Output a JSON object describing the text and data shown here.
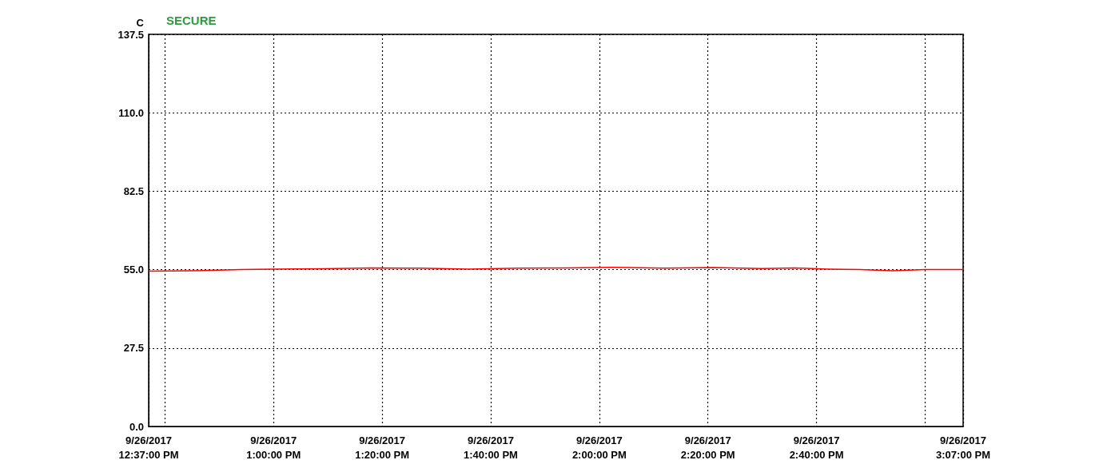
{
  "chart_data": {
    "type": "line",
    "ylabel": "C",
    "annotations": [
      "SECURE"
    ],
    "x": [
      "2017-09-26T12:37",
      "2017-09-26T12:45",
      "2017-09-26T12:54",
      "2017-09-26T13:00",
      "2017-09-26T13:09",
      "2017-09-26T13:18",
      "2017-09-26T13:27",
      "2017-09-26T13:36",
      "2017-09-26T13:45",
      "2017-09-26T13:54",
      "2017-09-26T14:03",
      "2017-09-26T14:12",
      "2017-09-26T14:21",
      "2017-09-26T14:30",
      "2017-09-26T14:36",
      "2017-09-26T14:42",
      "2017-09-26T14:48",
      "2017-09-26T14:54",
      "2017-09-26T15:00",
      "2017-09-26T15:07"
    ],
    "series": [
      {
        "color": "#ff0000",
        "values": [
          54.5,
          54.6,
          55.0,
          55.2,
          55.3,
          55.6,
          55.5,
          55.2,
          55.5,
          55.6,
          55.8,
          55.5,
          55.7,
          55.4,
          55.6,
          55.2,
          55.0,
          54.6,
          55.0,
          55.0
        ]
      }
    ],
    "xlim": [
      "2017-09-26T12:37",
      "2017-09-26T15:07"
    ],
    "xticks": [
      {
        "value": "2017-09-26T12:37",
        "label": "9/26/2017\n12:37:00 PM"
      },
      {
        "value": "2017-09-26T12:40",
        "label": null
      },
      {
        "value": "2017-09-26T13:00",
        "label": "9/26/2017\n1:00:00 PM"
      },
      {
        "value": "2017-09-26T13:20",
        "label": "9/26/2017\n1:20:00 PM"
      },
      {
        "value": "2017-09-26T13:40",
        "label": "9/26/2017\n1:40:00 PM"
      },
      {
        "value": "2017-09-26T14:00",
        "label": "9/26/2017\n2:00:00 PM"
      },
      {
        "value": "2017-09-26T14:20",
        "label": "9/26/2017\n2:20:00 PM"
      },
      {
        "value": "2017-09-26T14:40",
        "label": "9/26/2017\n2:40:00 PM"
      },
      {
        "value": "2017-09-26T15:00",
        "label": null
      },
      {
        "value": "2017-09-26T15:07",
        "label": "9/26/2017\n3:07:00 PM"
      }
    ],
    "ylim": [
      0,
      137.5
    ],
    "yticks": [
      {
        "value": 0,
        "label": "0.0"
      },
      {
        "value": 27.5,
        "label": "27.5"
      },
      {
        "value": 55,
        "label": "55.0"
      },
      {
        "value": 82.5,
        "label": "82.5"
      },
      {
        "value": 110,
        "label": "110.0"
      },
      {
        "value": 137.5,
        "label": "137.5"
      }
    ],
    "grid": true,
    "marker": "none",
    "line_style": "solid"
  }
}
